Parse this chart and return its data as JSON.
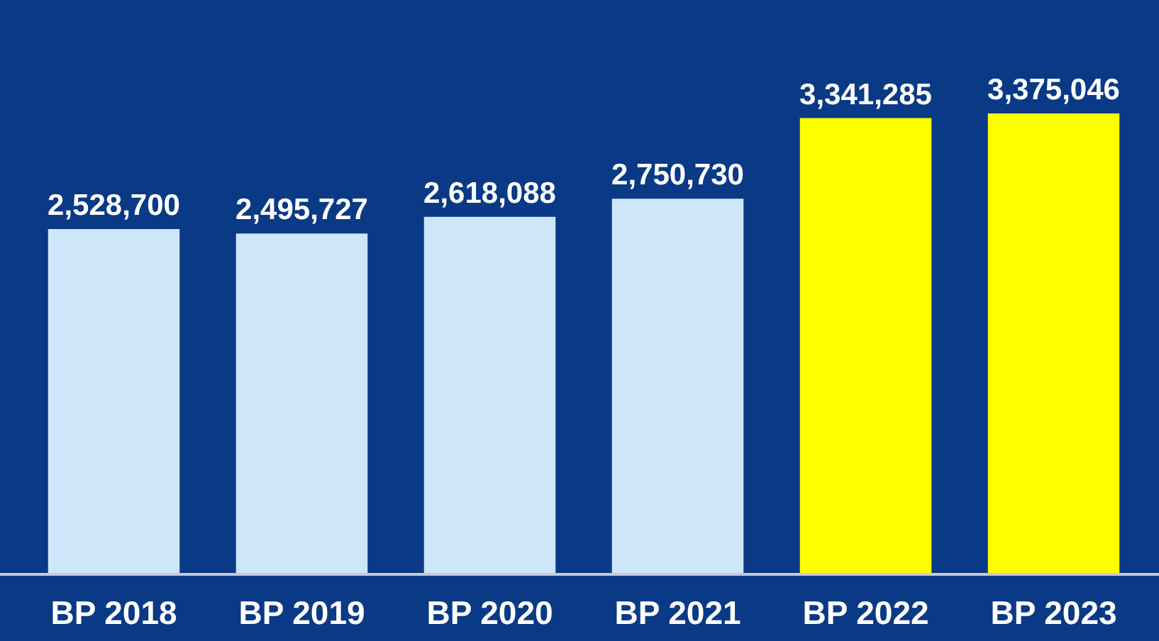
{
  "chart_data": {
    "type": "bar",
    "categories": [
      "BP 2018",
      "BP 2019",
      "BP 2020",
      "BP 2021",
      "BP 2022",
      "BP 2023"
    ],
    "values": [
      2528700,
      2495727,
      2618088,
      2750730,
      3341285,
      3375046
    ],
    "colors": [
      "#cde6fa",
      "#cde6fa",
      "#cde6fa",
      "#cde6fa",
      "#ffff00",
      "#ffff00"
    ],
    "value_labels": [
      "2,528,700",
      "2,495,727",
      "2,618,088",
      "2,750,730",
      "3,341,285",
      "3,375,046"
    ]
  }
}
